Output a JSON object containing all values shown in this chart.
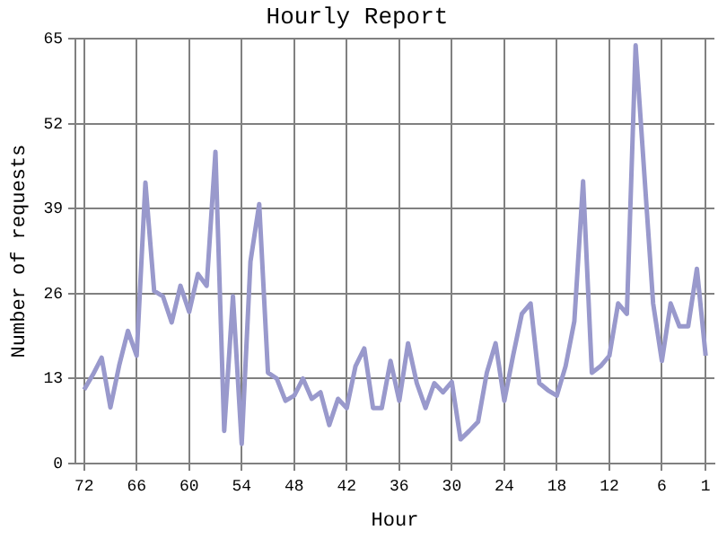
{
  "chart_data": {
    "type": "line",
    "title": "Hourly Report",
    "xlabel": "Hour",
    "ylabel": "Number of requests",
    "x": [
      72,
      71,
      70,
      69,
      68,
      67,
      66,
      65,
      64,
      63,
      62,
      61,
      60,
      59,
      58,
      57,
      56,
      55,
      54,
      53,
      52,
      51,
      50,
      49,
      48,
      47,
      46,
      45,
      44,
      43,
      42,
      41,
      40,
      39,
      38,
      37,
      36,
      35,
      34,
      33,
      32,
      31,
      30,
      29,
      28,
      27,
      26,
      25,
      24,
      23,
      22,
      21,
      20,
      19,
      18,
      17,
      16,
      15,
      14,
      13,
      12,
      11,
      10,
      9,
      8,
      7,
      6,
      5,
      4,
      3,
      2,
      1
    ],
    "series": [
      {
        "color": "#9999cc",
        "values": [
          11.3,
          13.6,
          16.2,
          8.6,
          15,
          20.3,
          16.5,
          43,
          26.4,
          25.6,
          21.6,
          27.2,
          23.2,
          29,
          27.2,
          47.7,
          5,
          25.6,
          3,
          30.9,
          39.7,
          13.9,
          13,
          9.6,
          10.4,
          13,
          9.9,
          10.9,
          5.9,
          9.9,
          8.5,
          14.9,
          17.6,
          8.5,
          8.5,
          15.7,
          9.6,
          18.4,
          12.3,
          8.5,
          12.3,
          10.9,
          12.5,
          3.7,
          5,
          6.4,
          13.9,
          18.4,
          9.6,
          16.5,
          22.9,
          24.5,
          12.3,
          11.2,
          10.4,
          14.9,
          21.8,
          43.2,
          13.9,
          14.9,
          16.5,
          24.5,
          22.9,
          64,
          44.2,
          24.5,
          15.7,
          24.5,
          21,
          21,
          29.8,
          16.5
        ]
      }
    ],
    "xlim": [
      73,
      0
    ],
    "xticks": [
      72,
      66,
      60,
      54,
      48,
      42,
      36,
      30,
      24,
      18,
      12,
      6,
      1
    ],
    "ylim": [
      0,
      65
    ],
    "yticks": [
      0,
      13,
      26,
      39,
      52,
      65
    ],
    "grid": true,
    "legend": false,
    "marker": "none",
    "line_style": "solid"
  }
}
